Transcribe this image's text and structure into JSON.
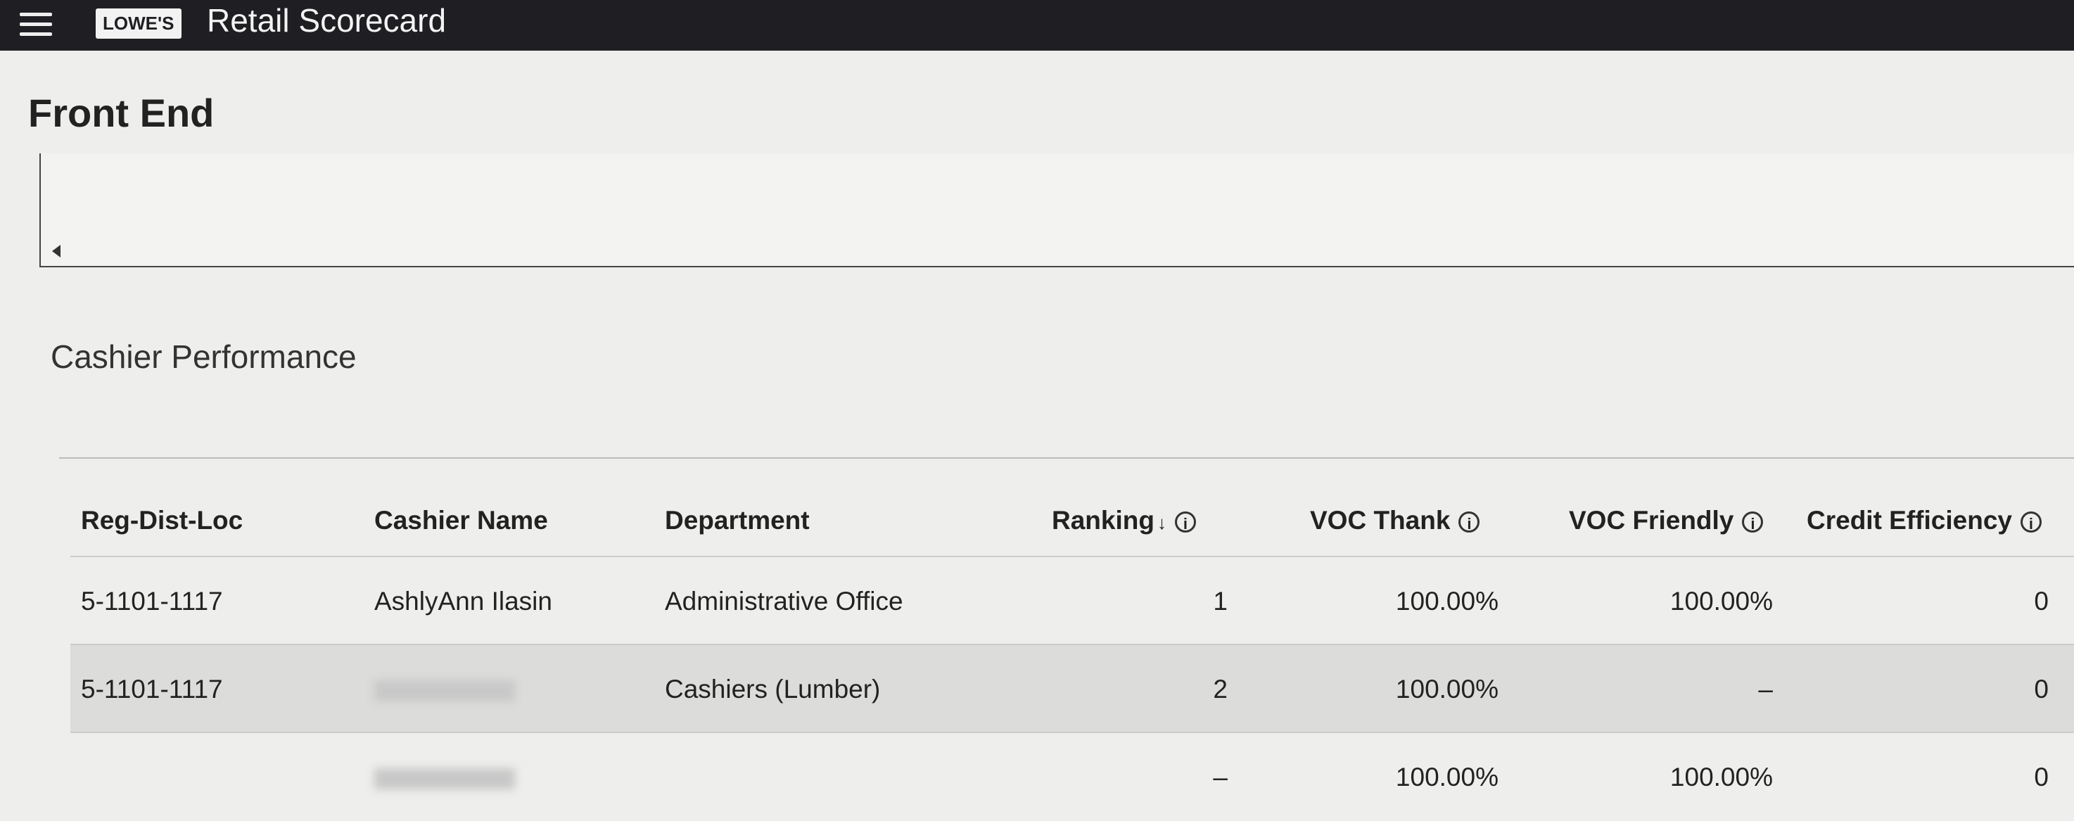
{
  "header": {
    "logo": "LOWE'S",
    "title": "Retail Scorecard"
  },
  "section_title": "Front End",
  "panel_title": "Cashier Performance",
  "table": {
    "columns": [
      "Reg-Dist-Loc",
      "Cashier Name",
      "Department",
      "Ranking",
      "VOC Thank",
      "VOC Friendly",
      "Credit Efficiency"
    ],
    "rows": [
      [
        "5-1101-1117",
        "AshlyAnn Ilasin",
        "Administrative Office",
        1,
        "100.00%",
        "100.00%",
        0
      ],
      [
        "5-1101-1117",
        null,
        "Cashiers (Lumber)",
        2,
        "100.00%",
        "–",
        0
      ],
      [
        null,
        null,
        null,
        "–",
        "100.00%",
        "100.00%",
        0
      ]
    ]
  }
}
